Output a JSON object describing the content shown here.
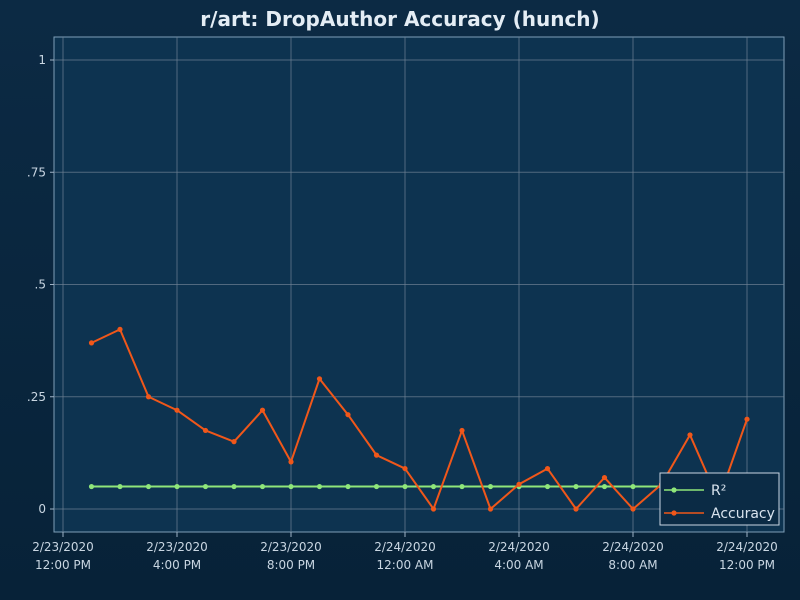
{
  "chart_data": {
    "type": "line",
    "title": "r/art: DropAuthor Accuracy (hunch)",
    "xlabel": "",
    "ylabel": "",
    "ylim": [
      0,
      1
    ],
    "y_ticks": [
      0,
      0.25,
      0.5,
      0.75,
      1
    ],
    "y_tick_labels": [
      "0",
      ".25",
      ".5",
      ".75",
      "1"
    ],
    "x_ticks": [
      {
        "line1": "2/23/2020",
        "line2": "12:00 PM"
      },
      {
        "line1": "2/23/2020",
        "line2": "4:00 PM"
      },
      {
        "line1": "2/23/2020",
        "line2": "8:00 PM"
      },
      {
        "line1": "2/24/2020",
        "line2": "12:00 AM"
      },
      {
        "line1": "2/24/2020",
        "line2": "4:00 AM"
      },
      {
        "line1": "2/24/2020",
        "line2": "8:00 AM"
      },
      {
        "line1": "2/24/2020",
        "line2": "12:00 PM"
      }
    ],
    "x_unit": "hours after 2/23/2020 12:00 PM",
    "x": [
      1,
      2,
      3,
      4,
      5,
      6,
      7,
      8,
      9,
      10,
      11,
      12,
      13,
      14,
      15,
      16,
      17,
      18,
      19,
      20,
      21,
      22,
      23,
      24
    ],
    "series": [
      {
        "name": "R²",
        "color": "#8fe67a",
        "values": [
          0.05,
          0.05,
          0.05,
          0.05,
          0.05,
          0.05,
          0.05,
          0.05,
          0.05,
          0.05,
          0.05,
          0.05,
          0.05,
          0.05,
          0.05,
          0.05,
          0.05,
          0.05,
          0.05,
          0.05,
          0.05,
          0.05,
          0.05,
          0.05
        ]
      },
      {
        "name": "Accuracy",
        "color": "#f0571a",
        "values": [
          0.37,
          0.4,
          0.25,
          0.22,
          0.175,
          0.15,
          0.22,
          0.105,
          0.29,
          0.21,
          0.12,
          0.09,
          0.0,
          0.175,
          0.0,
          0.055,
          0.09,
          0.0,
          0.07,
          0.0,
          0.055,
          0.165,
          0.02,
          0.2
        ]
      }
    ],
    "legend": "bottom-right",
    "grid": true
  }
}
